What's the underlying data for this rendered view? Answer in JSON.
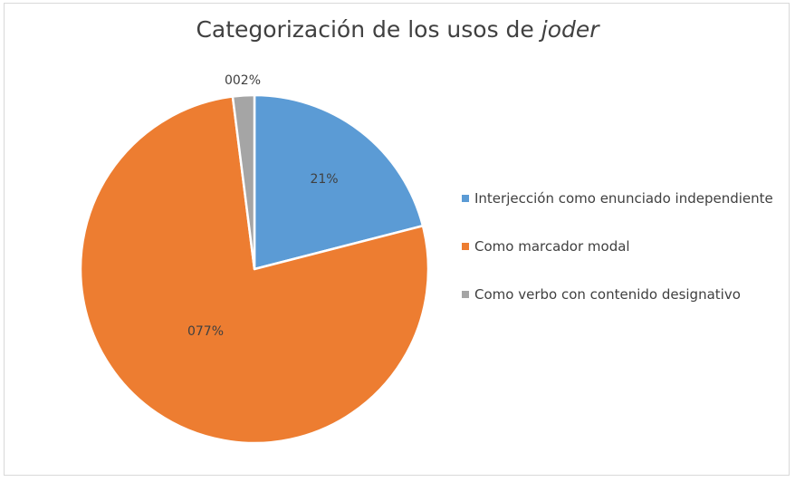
{
  "chart_data": {
    "type": "pie",
    "title": "Categorización de los usos de",
    "title_italic": "joder",
    "categories": [
      "Interjección como enunciado independiente",
      "Como marcador modal",
      "Como verbo con contenido designativo"
    ],
    "values": [
      21,
      77,
      2
    ],
    "data_labels": [
      "21%",
      "077%",
      "002%"
    ],
    "colors": [
      "#5b9bd5",
      "#ed7d31",
      "#a5a5a5"
    ],
    "legend_position": "right",
    "start_angle_deg": 0,
    "direction": "clockwise"
  }
}
